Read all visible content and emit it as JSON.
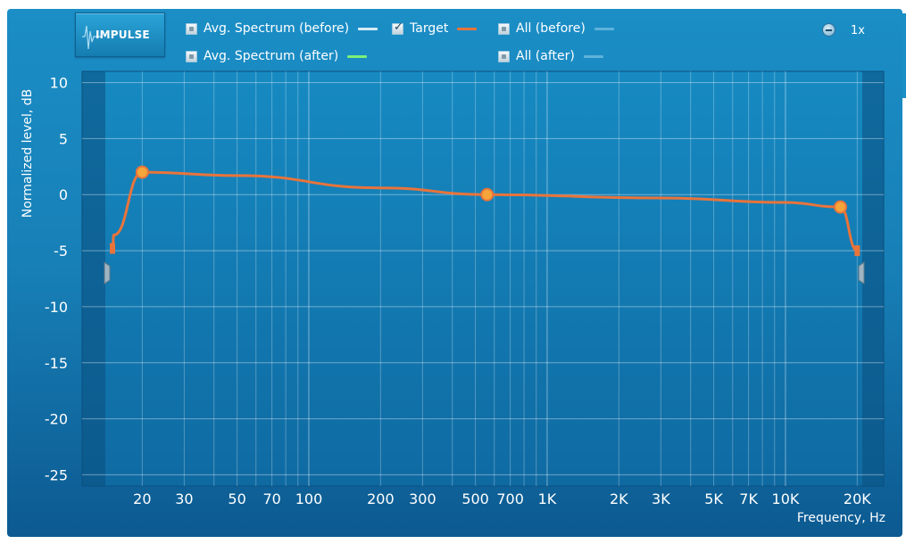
{
  "header": {
    "logo_text": "IMPULSE",
    "zoom_label": "1x"
  },
  "legend": [
    {
      "label": "Avg. Spectrum (before)",
      "checked": false,
      "color": "#d6ecf6"
    },
    {
      "label": "Avg. Spectrum (after)",
      "checked": false,
      "color": "#7cf07a"
    },
    {
      "label": "Target",
      "checked": true,
      "color": "#e8743b"
    },
    {
      "label": "All (before)",
      "checked": false,
      "color": "#5fb2db"
    },
    {
      "label": "All (after)",
      "checked": false,
      "color": "#5fb2db"
    }
  ],
  "chart_data": {
    "type": "line",
    "title": "",
    "xlabel": "Frequency, Hz",
    "ylabel": "Normalized level, dB",
    "xscale": "log",
    "xlim": [
      14,
      21000
    ],
    "ylim": [
      -26,
      11
    ],
    "grid": true,
    "x_tick_labels": [
      {
        "value": 20,
        "label": "20"
      },
      {
        "value": 30,
        "label": "30"
      },
      {
        "value": 50,
        "label": "50"
      },
      {
        "value": 70,
        "label": "70"
      },
      {
        "value": 100,
        "label": "100"
      },
      {
        "value": 200,
        "label": "200"
      },
      {
        "value": 300,
        "label": "300"
      },
      {
        "value": 500,
        "label": "500"
      },
      {
        "value": 700,
        "label": "700"
      },
      {
        "value": 1000,
        "label": "1K"
      },
      {
        "value": 2000,
        "label": "2K"
      },
      {
        "value": 3000,
        "label": "3K"
      },
      {
        "value": 5000,
        "label": "5K"
      },
      {
        "value": 7000,
        "label": "7K"
      },
      {
        "value": 10000,
        "label": "10K"
      },
      {
        "value": 20000,
        "label": "20K"
      }
    ],
    "y_ticks": [
      10,
      5,
      0,
      -5,
      -10,
      -15,
      -20,
      -25
    ],
    "series": [
      {
        "name": "Target",
        "color": "#e8743b",
        "points": [
          {
            "x": 15,
            "y": -4.8
          },
          {
            "x": 15.2,
            "y": -3.6
          },
          {
            "x": 20,
            "y": 2
          },
          {
            "x": 50,
            "y": 1.7
          },
          {
            "x": 200,
            "y": 0.6
          },
          {
            "x": 560,
            "y": 0
          },
          {
            "x": 3000,
            "y": -0.3
          },
          {
            "x": 10000,
            "y": -0.7
          },
          {
            "x": 17000,
            "y": -1.1
          },
          {
            "x": 20000,
            "y": -5
          }
        ],
        "handles": [
          {
            "x": 20,
            "y": 2
          },
          {
            "x": 560,
            "y": 0
          },
          {
            "x": 17000,
            "y": -1.1
          }
        ]
      }
    ],
    "range_markers": [
      {
        "side": "low",
        "y": -7
      },
      {
        "side": "high",
        "y": -7
      }
    ]
  }
}
